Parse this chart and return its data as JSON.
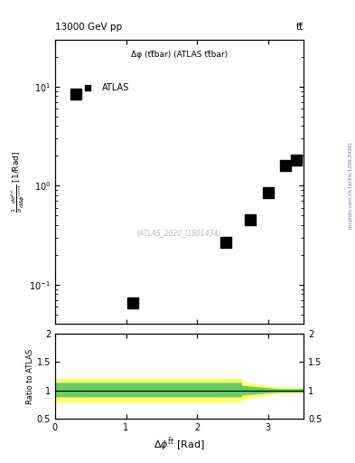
{
  "title_top_left": "13000 GeV pp",
  "title_top_right": "tt̅",
  "main_label": "Δφ (tt̅bar) (ATLAS tt̅bar)",
  "atlas_label": "ATLAS",
  "watermark": "(ATLAS_2020_I1801434)",
  "side_label": "mcplots.cern.ch [arXiv:1306.3436]",
  "ylabel_main": "$\\frac{1}{\\sigma}\\frac{d\\sigma^{fid}}{d\\Delta\\phi^{norm}}$ [1/Rad]",
  "ylabel_ratio": "Ratio to ATLAS",
  "xlabel": "$\\Delta\\phi^{\\bar{t}t}$ [Rad]",
  "data_x": [
    0.3,
    1.1,
    2.4,
    2.75,
    3.0,
    3.25,
    3.4
  ],
  "data_y": [
    8.5,
    0.065,
    0.27,
    0.45,
    0.85,
    1.6,
    1.8
  ],
  "marker_color": "black",
  "marker_style": "s",
  "marker_size": 4,
  "xlim": [
    0,
    3.5
  ],
  "ylim_main_log": [
    0.04,
    30
  ],
  "ylim_ratio": [
    0.5,
    2.0
  ],
  "ratio_line_y": 1.0,
  "yellow_band_x": [
    0.0,
    0.52,
    0.52,
    1.05,
    1.05,
    1.57,
    1.57,
    2.09,
    2.09,
    2.62,
    2.62,
    3.14,
    3.14,
    3.5
  ],
  "yellow_band_upper": [
    1.2,
    1.2,
    1.2,
    1.2,
    1.2,
    1.2,
    1.2,
    1.2,
    1.2,
    1.2,
    1.15,
    1.05,
    1.05,
    1.05
  ],
  "yellow_band_lower": [
    0.8,
    0.8,
    0.8,
    0.8,
    0.8,
    0.8,
    0.8,
    0.8,
    0.8,
    0.8,
    0.85,
    0.96,
    0.96,
    0.96
  ],
  "green_band_x": [
    0.0,
    0.52,
    0.52,
    1.05,
    1.05,
    1.57,
    1.57,
    2.09,
    2.09,
    2.62,
    2.62,
    3.14,
    3.14,
    3.5
  ],
  "green_band_upper": [
    1.13,
    1.13,
    1.13,
    1.13,
    1.13,
    1.13,
    1.13,
    1.13,
    1.13,
    1.13,
    1.08,
    1.02,
    1.02,
    1.02
  ],
  "green_band_lower": [
    0.9,
    0.9,
    0.9,
    0.9,
    0.9,
    0.9,
    0.9,
    0.9,
    0.9,
    0.9,
    0.93,
    0.98,
    0.98,
    0.98
  ],
  "green_color": "#66cc66",
  "yellow_color": "#ffff66",
  "bg_color": "white"
}
